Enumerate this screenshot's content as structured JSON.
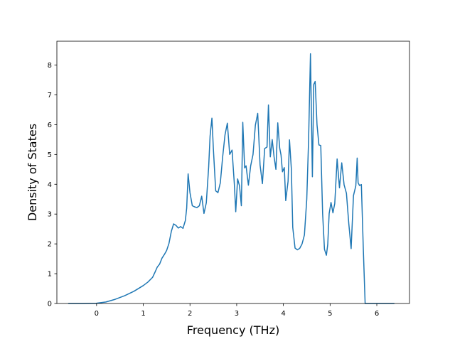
{
  "chart_data": {
    "type": "line",
    "xlabel": "Frequency (THz)",
    "ylabel": "Density of States",
    "xlim": [
      -0.85,
      6.7
    ],
    "ylim": [
      0,
      8.8
    ],
    "xticks": [
      0,
      1,
      2,
      3,
      4,
      5,
      6
    ],
    "yticks": [
      0,
      1,
      2,
      3,
      4,
      5,
      6,
      7,
      8
    ],
    "grid": false,
    "series": [
      {
        "color": "#1f77b4",
        "x": [
          -0.6,
          -0.3,
          0.0,
          0.2,
          0.4,
          0.6,
          0.8,
          1.0,
          1.1,
          1.2,
          1.25,
          1.3,
          1.35,
          1.4,
          1.45,
          1.5,
          1.55,
          1.6,
          1.65,
          1.7,
          1.75,
          1.8,
          1.85,
          1.9,
          1.93,
          1.96,
          2.0,
          2.05,
          2.1,
          2.15,
          2.2,
          2.25,
          2.3,
          2.35,
          2.4,
          2.43,
          2.47,
          2.5,
          2.55,
          2.6,
          2.65,
          2.7,
          2.75,
          2.8,
          2.85,
          2.9,
          2.95,
          2.98,
          3.02,
          3.06,
          3.1,
          3.13,
          3.17,
          3.2,
          3.25,
          3.3,
          3.35,
          3.4,
          3.45,
          3.5,
          3.55,
          3.6,
          3.65,
          3.68,
          3.72,
          3.76,
          3.8,
          3.84,
          3.88,
          3.92,
          3.95,
          3.98,
          4.02,
          4.05,
          4.1,
          4.13,
          4.17,
          4.2,
          4.25,
          4.3,
          4.35,
          4.4,
          4.45,
          4.5,
          4.54,
          4.58,
          4.62,
          4.65,
          4.68,
          4.72,
          4.76,
          4.8,
          4.84,
          4.88,
          4.92,
          4.95,
          4.98,
          5.02,
          5.06,
          5.1,
          5.15,
          5.2,
          5.25,
          5.3,
          5.35,
          5.4,
          5.45,
          5.5,
          5.55,
          5.58,
          5.6,
          5.63,
          5.67,
          5.71,
          5.75,
          5.78,
          5.85,
          6.0,
          6.2,
          6.37
        ],
        "y": [
          0.0,
          0.0,
          0.01,
          0.05,
          0.14,
          0.26,
          0.41,
          0.6,
          0.72,
          0.88,
          1.05,
          1.22,
          1.32,
          1.52,
          1.64,
          1.78,
          2.02,
          2.42,
          2.67,
          2.62,
          2.53,
          2.58,
          2.52,
          2.78,
          3.2,
          4.35,
          3.72,
          3.28,
          3.24,
          3.22,
          3.28,
          3.6,
          3.02,
          3.38,
          4.58,
          5.62,
          6.22,
          5.2,
          3.78,
          3.72,
          4.05,
          4.92,
          5.66,
          6.05,
          5.0,
          5.15,
          4.02,
          3.08,
          4.18,
          3.95,
          3.28,
          6.08,
          4.55,
          4.62,
          3.97,
          4.62,
          5.0,
          5.98,
          6.38,
          4.65,
          4.02,
          5.2,
          5.25,
          6.66,
          4.92,
          5.5,
          4.92,
          4.5,
          6.06,
          5.22,
          4.98,
          4.42,
          4.56,
          3.45,
          4.1,
          5.49,
          4.52,
          2.55,
          1.86,
          1.8,
          1.85,
          2.0,
          2.3,
          3.5,
          5.52,
          8.38,
          4.25,
          7.35,
          7.45,
          6.0,
          5.32,
          5.3,
          3.02,
          1.82,
          1.62,
          1.98,
          3.02,
          3.39,
          3.04,
          3.36,
          4.85,
          3.88,
          4.72,
          3.98,
          3.7,
          2.68,
          1.84,
          3.62,
          3.95,
          4.88,
          4.05,
          3.96,
          3.99,
          1.85,
          0.0,
          0.0,
          0.0,
          0.0,
          0.0,
          0.0
        ]
      }
    ]
  }
}
